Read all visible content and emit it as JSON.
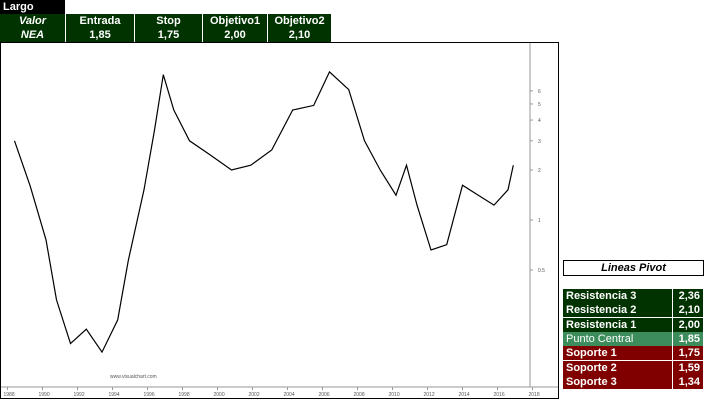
{
  "top_table": {
    "title": "Largo",
    "headers": [
      "Valor",
      "Entrada",
      "Stop",
      "Objetivo1",
      "Objetivo2"
    ],
    "row": [
      "NEA",
      "1,85",
      "1,75",
      "2,00",
      "2,10"
    ]
  },
  "chart_data": {
    "type": "line",
    "log_scale": true,
    "color": "#000000",
    "watermark": "www.visualchart.com",
    "x": [
      1988.4,
      1989.3,
      1990.2,
      1990.8,
      1991.6,
      1992.5,
      1993.4,
      1994.3,
      1994.9,
      1995.8,
      1996.4,
      1996.9,
      1997.5,
      1998.4,
      1999.6,
      2000.8,
      2001.9,
      2003.1,
      2004.3,
      2005.5,
      2006.4,
      2007.5,
      2008.4,
      2009.3,
      2010.2,
      2010.8,
      2011.4,
      2012.2,
      2013.1,
      2014.0,
      2014.9,
      2015.8,
      2016.6,
      2016.9
    ],
    "values": [
      3.0,
      1.6,
      0.76,
      0.33,
      0.18,
      0.22,
      0.16,
      0.25,
      0.57,
      1.52,
      3.48,
      7.5,
      4.6,
      3.0,
      2.46,
      2.0,
      2.14,
      2.64,
      4.6,
      4.9,
      7.8,
      6.1,
      3.0,
      2.0,
      1.41,
      2.14,
      1.23,
      0.66,
      0.71,
      1.62,
      1.41,
      1.23,
      1.52,
      2.14
    ],
    "xlim": [
      1987.8,
      2018.2
    ],
    "xticks": [
      1988,
      1990,
      1992,
      1994,
      1996,
      1998,
      2000,
      2002,
      2004,
      2006,
      2008,
      2010,
      2012,
      2014,
      2016,
      2018
    ],
    "ylim": [
      0.1,
      10
    ],
    "yticks": [
      0.5,
      1,
      2,
      3,
      4,
      5,
      6
    ]
  },
  "pivot_table": {
    "title": "Lineas Pivot",
    "rows": [
      [
        "Resistencia 3",
        "2,36"
      ],
      [
        "Resistencia 2",
        "2,10"
      ],
      [
        "Resistencia 1",
        "2,00"
      ],
      [
        "Punto Central",
        "1,85"
      ],
      [
        "Soporte 1",
        "1,75"
      ],
      [
        "Soporte 2",
        "1,59"
      ],
      [
        "Soporte 3",
        "1,34"
      ]
    ]
  }
}
